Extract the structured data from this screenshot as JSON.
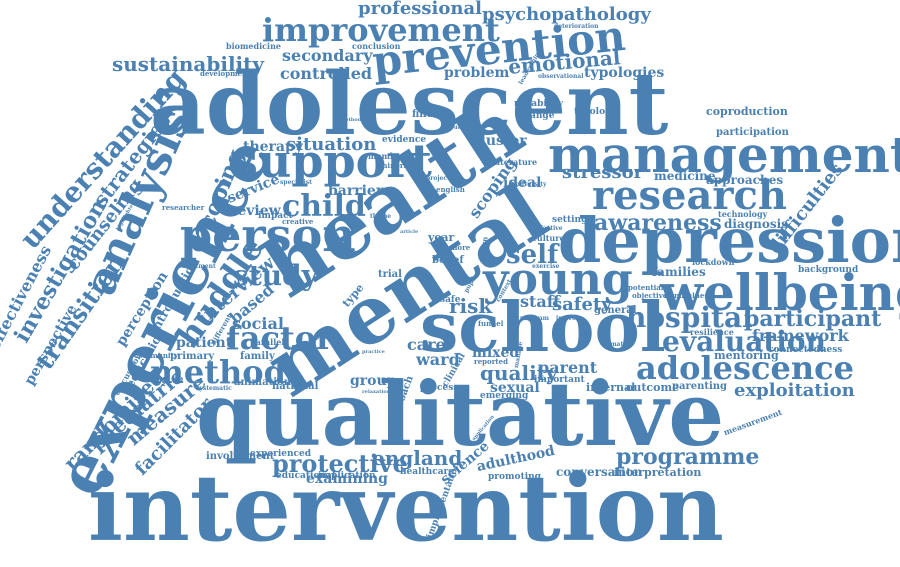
{
  "color": "#4a80b2",
  "words": [
    {
      "text": "intervention",
      "weight": 10
    },
    {
      "text": "qualitative",
      "weight": 9.5
    },
    {
      "text": "adolescent",
      "weight": 9.5
    },
    {
      "text": "mental",
      "weight": 8.5
    },
    {
      "text": "health",
      "weight": 8.5
    },
    {
      "text": "school",
      "weight": 7.5
    },
    {
      "text": "experience",
      "weight": 7.5
    },
    {
      "text": "depression",
      "weight": 7
    },
    {
      "text": "management",
      "weight": 6
    },
    {
      "text": "wellbeing",
      "weight": 6
    },
    {
      "text": "support",
      "weight": 5.5
    },
    {
      "text": "person",
      "weight": 5.5
    },
    {
      "text": "young",
      "weight": 5.5
    },
    {
      "text": "research",
      "weight": 5
    },
    {
      "text": "prevention",
      "weight": 5
    },
    {
      "text": "analysis",
      "weight": 5
    },
    {
      "text": "improvement",
      "weight": 4
    },
    {
      "text": "method",
      "weight": 4
    },
    {
      "text": "adolescence",
      "weight": 4
    },
    {
      "text": "factor",
      "weight": 4
    },
    {
      "text": "child",
      "weight": 3.5
    },
    {
      "text": "study",
      "weight": 3.5
    },
    {
      "text": "understanding",
      "weight": 3.5
    },
    {
      "text": "hospital",
      "weight": 3.5
    },
    {
      "text": "evaluation",
      "weight": 3.5
    },
    {
      "text": "huddle",
      "weight": 3.5
    },
    {
      "text": "self",
      "weight": 3.5
    },
    {
      "text": "awareness",
      "weight": 3.2
    },
    {
      "text": "transition",
      "weight": 3
    },
    {
      "text": "investigation",
      "weight": 3
    },
    {
      "text": "participant",
      "weight": 3
    },
    {
      "text": "programme",
      "weight": 3
    },
    {
      "text": "protective",
      "weight": 3
    },
    {
      "text": "coping",
      "weight": 3
    },
    {
      "text": "emotional",
      "weight": 3
    },
    {
      "text": "england",
      "weight": 2.6
    },
    {
      "text": "sustainability",
      "weight": 2.6
    },
    {
      "text": "quality",
      "weight": 2.6
    },
    {
      "text": "measure",
      "weight": 2.6
    },
    {
      "text": "paediatric",
      "weight": 2.6
    },
    {
      "text": "randomised",
      "weight": 2.6
    },
    {
      "text": "strategies",
      "weight": 2.6
    },
    {
      "text": "situation",
      "weight": 2.6
    },
    {
      "text": "safety",
      "weight": 2.4
    },
    {
      "text": "stressor",
      "weight": 2.4
    },
    {
      "text": "exploitation",
      "weight": 2.4
    },
    {
      "text": "professional",
      "weight": 2.3
    },
    {
      "text": "psychopathology",
      "weight": 2.3
    },
    {
      "text": "difficulties",
      "weight": 2.2
    },
    {
      "text": "facilitator",
      "weight": 2.2
    },
    {
      "text": "effectiveness",
      "weight": 2.2
    },
    {
      "text": "counseling",
      "weight": 2.2
    },
    {
      "text": "interview",
      "weight": 2.2
    },
    {
      "text": "risk",
      "weight": 2.2
    },
    {
      "text": "framework",
      "weight": 2
    },
    {
      "text": "parent",
      "weight": 2
    },
    {
      "text": "staff",
      "weight": 2
    },
    {
      "text": "ward",
      "weight": 2
    },
    {
      "text": "care",
      "weight": 2
    },
    {
      "text": "social",
      "weight": 2
    },
    {
      "text": "secondary",
      "weight": 2
    },
    {
      "text": "controlled",
      "weight": 2
    },
    {
      "text": "scoping",
      "weight": 2
    },
    {
      "text": "therapy",
      "weight": 2
    },
    {
      "text": "review",
      "weight": 2
    },
    {
      "text": "based",
      "weight": 2
    },
    {
      "text": "patient",
      "weight": 2
    },
    {
      "text": "perspective",
      "weight": 1.8
    },
    {
      "text": "problem",
      "weight": 1.8
    },
    {
      "text": "typologies",
      "weight": 1.8
    },
    {
      "text": "cluster",
      "weight": 1.8
    },
    {
      "text": "service",
      "weight": 1.8
    },
    {
      "text": "perception",
      "weight": 1.8
    },
    {
      "text": "science",
      "weight": 1.8
    },
    {
      "text": "adulthood",
      "weight": 1.8
    },
    {
      "text": "sexual",
      "weight": 1.8
    },
    {
      "text": "mixed",
      "weight": 1.8
    },
    {
      "text": "group",
      "weight": 1.8
    },
    {
      "text": "barrier",
      "weight": 1.8
    },
    {
      "text": "examining",
      "weight": 1.8
    },
    {
      "text": "ideal",
      "weight": 1.8
    },
    {
      "text": "medicine",
      "weight": 1.5
    },
    {
      "text": "approaches",
      "weight": 1.5
    },
    {
      "text": "families",
      "weight": 1.5
    },
    {
      "text": "diagnosis",
      "weight": 1.5
    },
    {
      "text": "education",
      "weight": 1.5
    },
    {
      "text": "introduction",
      "weight": 1.5
    },
    {
      "text": "mentoring",
      "weight": 1.5
    },
    {
      "text": "conversation",
      "weight": 1.5
    },
    {
      "text": "interpretation",
      "weight": 1.5
    },
    {
      "text": "internal",
      "weight": 1.5
    },
    {
      "text": "outcome",
      "weight": 1.5
    },
    {
      "text": "parenting",
      "weight": 1.3
    },
    {
      "text": "involvement",
      "weight": 1.3
    },
    {
      "text": "experienced",
      "weight": 1.2
    },
    {
      "text": "educational",
      "weight": 1.2
    },
    {
      "text": "implication",
      "weight": 1.2
    },
    {
      "text": "healthcare",
      "weight": 1.2
    },
    {
      "text": "implementation",
      "weight": 1.2
    },
    {
      "text": "promoting",
      "weight": 1.2
    },
    {
      "text": "emerging",
      "weight": 1.2
    },
    {
      "text": "processes",
      "weight": 1.2
    },
    {
      "text": "primary",
      "weight": 1.3
    },
    {
      "text": "family",
      "weight": 1.3
    },
    {
      "text": "animation",
      "weight": 1.3
    },
    {
      "text": "national",
      "weight": 1.3
    },
    {
      "text": "community",
      "weight": 1
    },
    {
      "text": "discussion",
      "weight": 1
    },
    {
      "text": "parallel",
      "weight": 1.1
    },
    {
      "text": "evidence",
      "weight": 1.1
    },
    {
      "text": "finding",
      "weight": 1.3
    },
    {
      "text": "conclusion",
      "weight": 1.1
    },
    {
      "text": "biomedicine",
      "weight": 1.1
    },
    {
      "text": "development",
      "weight": 1
    },
    {
      "text": "reliability",
      "weight": 1.2
    },
    {
      "text": "change",
      "weight": 1.2
    },
    {
      "text": "typology",
      "weight": 1.2
    },
    {
      "text": "coproduction",
      "weight": 1.3
    },
    {
      "text": "participation",
      "weight": 1.3
    },
    {
      "text": "technology",
      "weight": 1.1
    },
    {
      "text": "connectedness",
      "weight": 1.1
    },
    {
      "text": "background",
      "weight": 1.1
    },
    {
      "text": "resilience",
      "weight": 1.1
    },
    {
      "text": "lockdown",
      "weight": 1.1
    },
    {
      "text": "measurement",
      "weight": 1.1
    },
    {
      "text": "mindfulness",
      "weight": 1
    },
    {
      "text": "potential",
      "weight": 1
    },
    {
      "text": "objective",
      "weight": 1
    },
    {
      "text": "general",
      "weight": 1.3
    },
    {
      "text": "important",
      "weight": 1.2
    },
    {
      "text": "setting",
      "weight": 1.1
    },
    {
      "text": "culture",
      "weight": 1
    },
    {
      "text": "literature",
      "weight": 1
    },
    {
      "text": "year",
      "weight": 1.3
    },
    {
      "text": "member",
      "weight": 1
    },
    {
      "text": "minority",
      "weight": 1
    },
    {
      "text": "english",
      "weight": 1
    },
    {
      "text": "belief",
      "weight": 1.3
    },
    {
      "text": "trial",
      "weight": 1.3
    },
    {
      "text": "safe",
      "weight": 1.2
    },
    {
      "text": "type",
      "weight": 1.3
    },
    {
      "text": "different",
      "weight": 1
    },
    {
      "text": "impact",
      "weight": 1.1
    },
    {
      "text": "creative",
      "weight": 1
    },
    {
      "text": "specialist",
      "weight": 1
    },
    {
      "text": "researcher",
      "weight": 1
    },
    {
      "text": "treatment",
      "weight": 1
    },
    {
      "text": "deterioration",
      "weight": 1
    },
    {
      "text": "observational",
      "weight": 1
    },
    {
      "text": "adversity",
      "weight": 1
    },
    {
      "text": "program",
      "weight": 1
    },
    {
      "text": "improve",
      "weight": 1
    },
    {
      "text": "funnel",
      "weight": 1
    },
    {
      "text": "design",
      "weight": 1
    },
    {
      "text": "more",
      "weight": 1
    },
    {
      "text": "theme",
      "weight": 1
    },
    {
      "text": "clinical",
      "weight": 1.2
    },
    {
      "text": "approach",
      "weight": 1.3
    },
    {
      "text": "reported",
      "weight": 1
    },
    {
      "text": "systematic",
      "weight": 1
    },
    {
      "text": "referral",
      "weight": 1
    },
    {
      "text": "positive",
      "weight": 1
    },
    {
      "text": "relaxation",
      "weight": 1
    },
    {
      "text": "climate",
      "weight": 1
    },
    {
      "text": "application",
      "weight": 1
    },
    {
      "text": "manage",
      "weight": 1
    },
    {
      "text": "highlighted",
      "weight": 1
    },
    {
      "text": "methodology",
      "weight": 1
    },
    {
      "text": "decoupling",
      "weight": 1
    },
    {
      "text": "leadership",
      "weight": 1
    },
    {
      "text": "exercise",
      "weight": 1
    },
    {
      "text": "effective",
      "weight": 1
    },
    {
      "text": "context",
      "weight": 1
    },
    {
      "text": "project",
      "weight": 1
    },
    {
      "text": "pupil",
      "weight": 1
    },
    {
      "text": "practice",
      "weight": 1
    },
    {
      "text": "article",
      "weight": 1
    }
  ]
}
